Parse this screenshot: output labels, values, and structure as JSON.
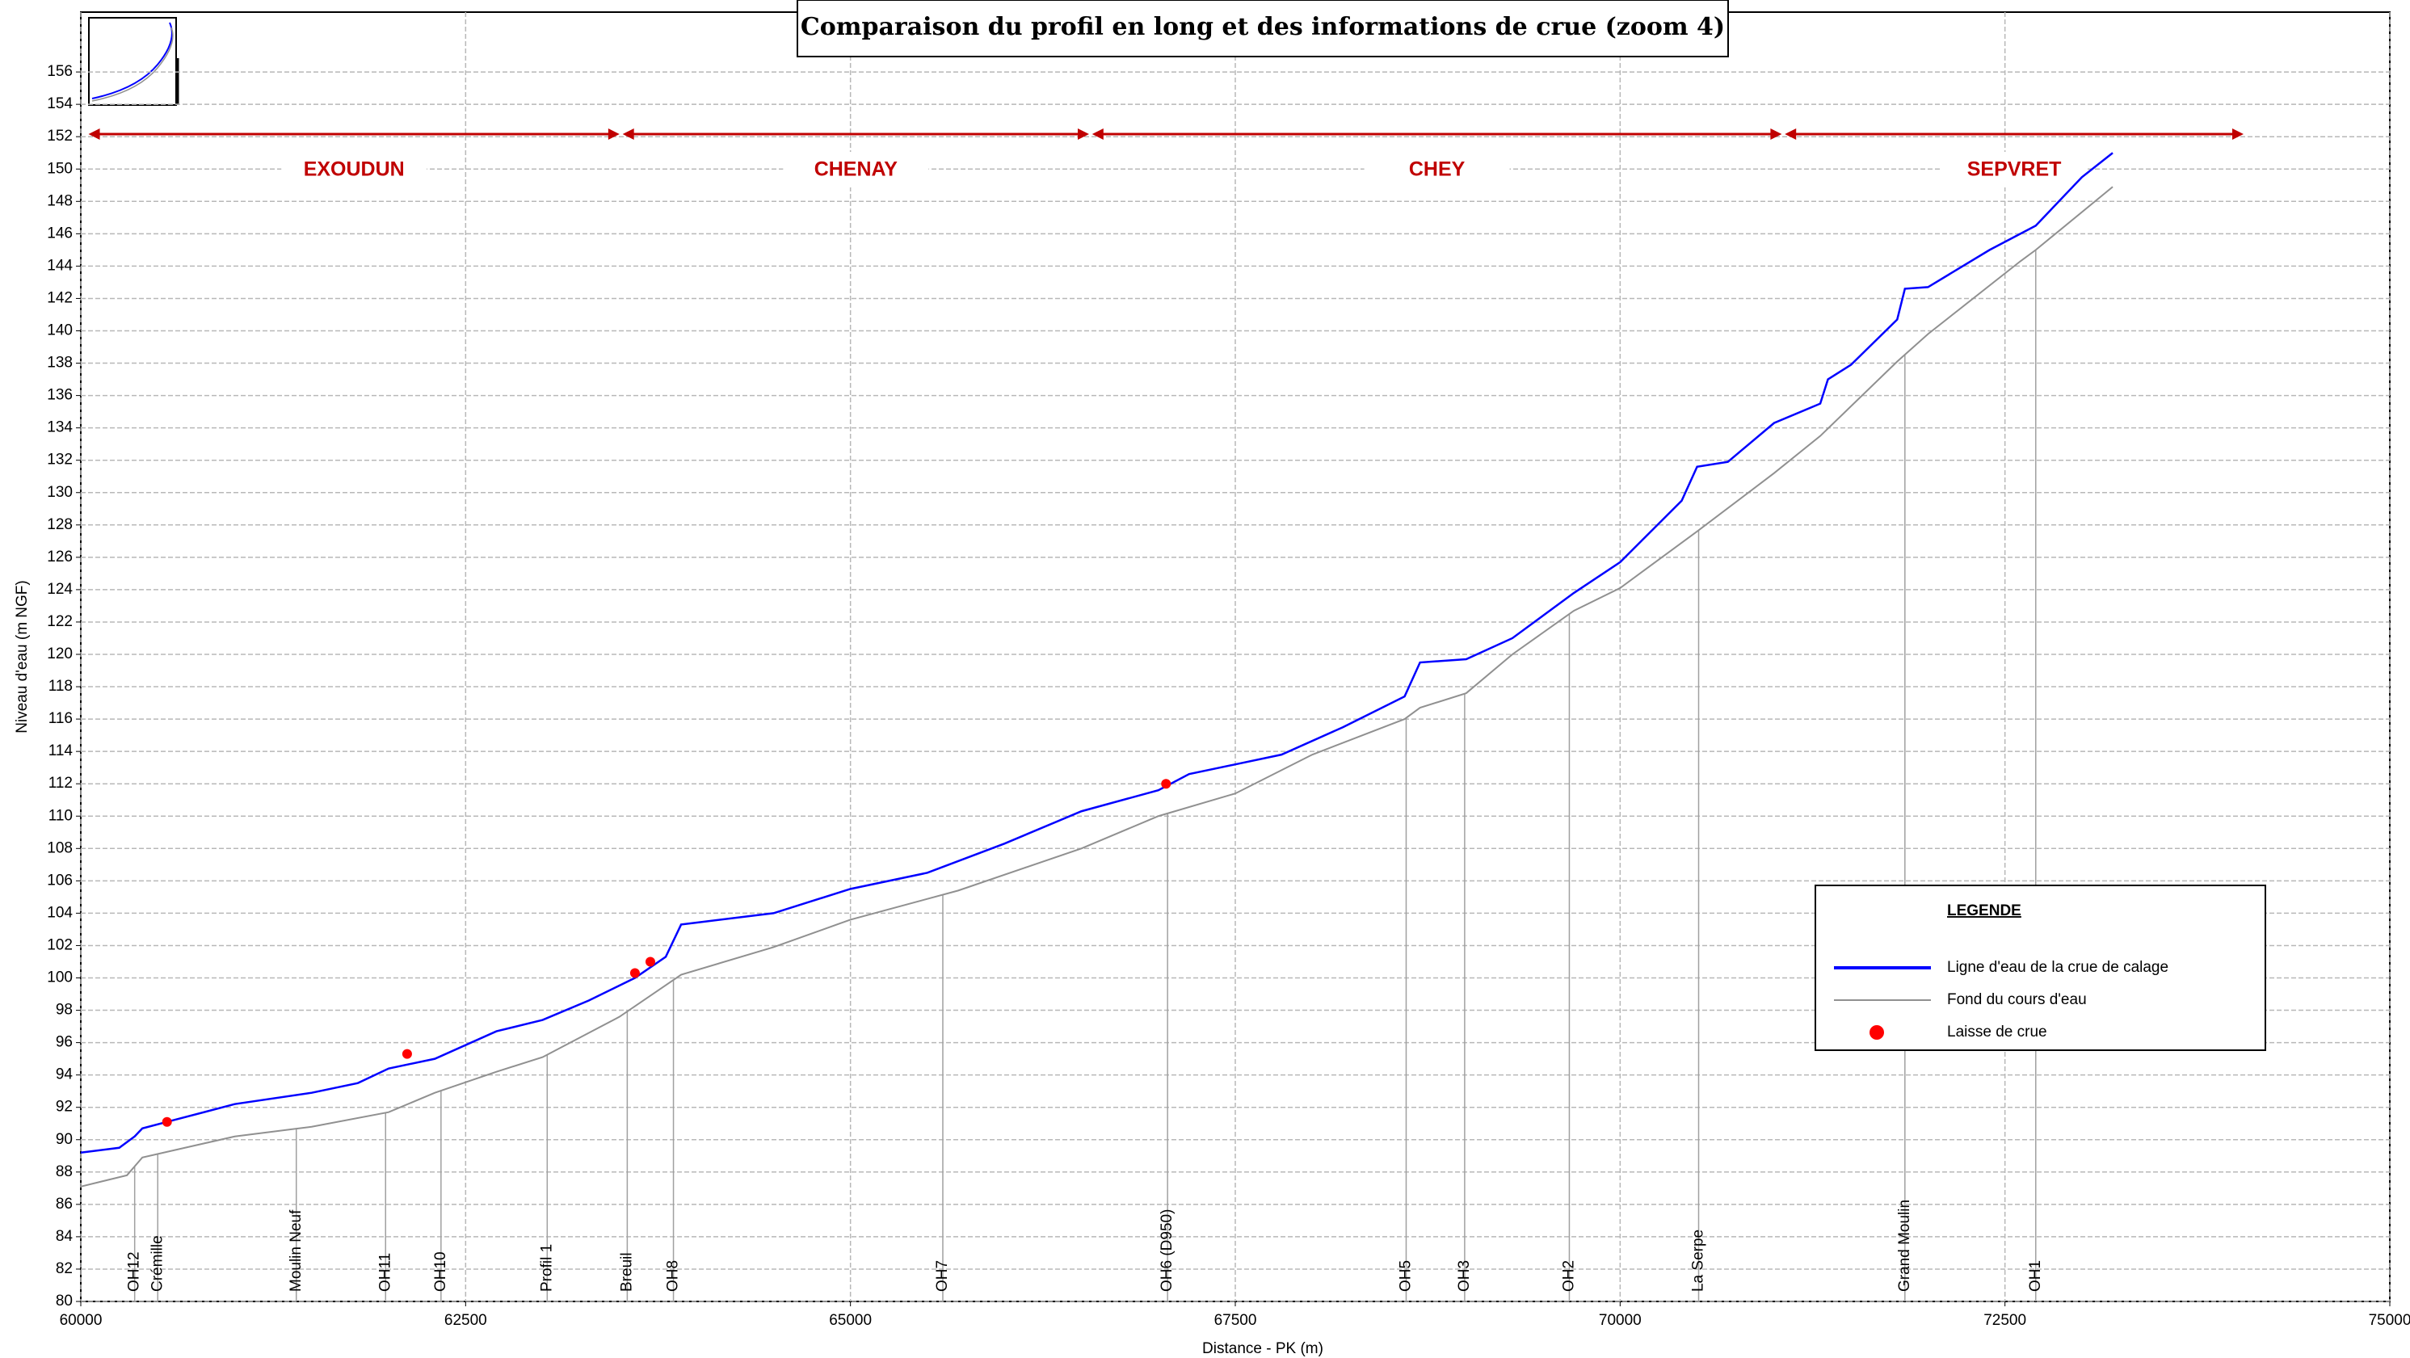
{
  "chart_data": {
    "type": "line",
    "title": "Comparaison du profil en long et des informations de crue (zoom 4)",
    "xlabel": "Distance - PK (m)",
    "ylabel": "Niveau d'eau (m NGF)",
    "xlim": [
      60000,
      75000
    ],
    "xticks": [
      60000,
      62500,
      65000,
      67500,
      70000,
      72500,
      75000
    ],
    "ylim": [
      80,
      159.7
    ],
    "yticks": [
      80,
      82,
      84,
      86,
      88,
      90,
      92,
      94,
      96,
      98,
      100,
      102,
      104,
      106,
      108,
      110,
      112,
      114,
      116,
      118,
      120,
      122,
      124,
      126,
      128,
      130,
      132,
      134,
      136,
      138,
      140,
      142,
      144,
      146,
      148,
      150,
      152,
      154,
      156
    ],
    "grid": true,
    "legend_title": "LEGENDE",
    "legend_position": "lower right",
    "series": [
      {
        "name": "Ligne d'eau de la crue de calage",
        "type": "line",
        "color": "#0000ff",
        "x": [
          60000,
          60250,
          60350,
          60400,
          60600,
          61000,
          61500,
          61800,
          62000,
          62300,
          62700,
          63000,
          63300,
          63600,
          63800,
          63900,
          64500,
          65000,
          65500,
          66000,
          66500,
          67000,
          67200,
          67500,
          67800,
          68200,
          68600,
          68700,
          69000,
          69300,
          69700,
          70000,
          70400,
          70500,
          70700,
          71000,
          71300,
          71350,
          71500,
          71800,
          71850,
          72000,
          72400,
          72700,
          73000,
          73200
        ],
        "values": [
          89.2,
          89.5,
          90.2,
          90.7,
          91.2,
          92.2,
          92.9,
          93.5,
          94.4,
          95.0,
          96.7,
          97.4,
          98.6,
          100.0,
          101.3,
          103.3,
          104.0,
          105.5,
          106.5,
          108.3,
          110.3,
          111.6,
          112.6,
          113.2,
          113.8,
          115.5,
          117.4,
          119.5,
          119.7,
          121.0,
          123.8,
          125.7,
          129.5,
          131.6,
          131.9,
          134.3,
          135.5,
          137.0,
          137.9,
          140.7,
          142.6,
          142.7,
          145.0,
          146.5,
          149.5,
          151.0
        ]
      },
      {
        "name": "Fond du cours d'eau",
        "type": "line",
        "color": "#909090",
        "x": [
          60000,
          60300,
          60400,
          61000,
          61500,
          62000,
          62300,
          62700,
          63000,
          63500,
          63900,
          64500,
          65000,
          65700,
          66500,
          67000,
          67500,
          68000,
          68600,
          68700,
          69000,
          69300,
          69700,
          70000,
          70500,
          71000,
          71300,
          71800,
          72000,
          72600,
          72700,
          73200
        ],
        "values": [
          87.1,
          87.8,
          88.9,
          90.2,
          90.8,
          91.7,
          92.9,
          94.2,
          95.1,
          97.6,
          100.2,
          101.9,
          103.6,
          105.4,
          108.0,
          110.0,
          111.4,
          113.8,
          116.0,
          116.7,
          117.6,
          120.0,
          122.7,
          124.1,
          127.6,
          131.2,
          133.5,
          138.1,
          139.8,
          144.3,
          145.0,
          148.9
        ]
      },
      {
        "name": "Laisse de crue",
        "type": "scatter",
        "color": "#ff0000",
        "x": [
          60560,
          62120,
          63600,
          63700,
          67050
        ],
        "values": [
          91.1,
          95.3,
          100.3,
          101.0,
          112.0
        ]
      }
    ],
    "structures": [
      {
        "label": "OH12",
        "x": 60350
      },
      {
        "label": "Crémille",
        "x": 60500
      },
      {
        "label": "Moulin Neuf",
        "x": 61400
      },
      {
        "label": "OH11",
        "x": 61980
      },
      {
        "label": "OH10",
        "x": 62340
      },
      {
        "label": "Profil 1",
        "x": 63030
      },
      {
        "label": "Breuil",
        "x": 63550
      },
      {
        "label": "OH8",
        "x": 63850
      },
      {
        "label": "OH7",
        "x": 65600
      },
      {
        "label": "OH6 (D950)",
        "x": 67060
      },
      {
        "label": "OH5",
        "x": 68610
      },
      {
        "label": "OH3",
        "x": 68990
      },
      {
        "label": "OH2",
        "x": 69670
      },
      {
        "label": "La Serpe",
        "x": 70510
      },
      {
        "label": "Grand Moulin",
        "x": 71850
      },
      {
        "label": "OH1",
        "x": 72700
      }
    ],
    "zones": [
      {
        "label": "EXOUDUN",
        "start": 60050,
        "end": 63500
      },
      {
        "label": "CHENAY",
        "start": 63520,
        "end": 66550
      },
      {
        "label": "CHEY",
        "start": 66570,
        "end": 71050
      },
      {
        "label": "SEPVRET",
        "start": 71070,
        "end": 74050
      }
    ]
  }
}
